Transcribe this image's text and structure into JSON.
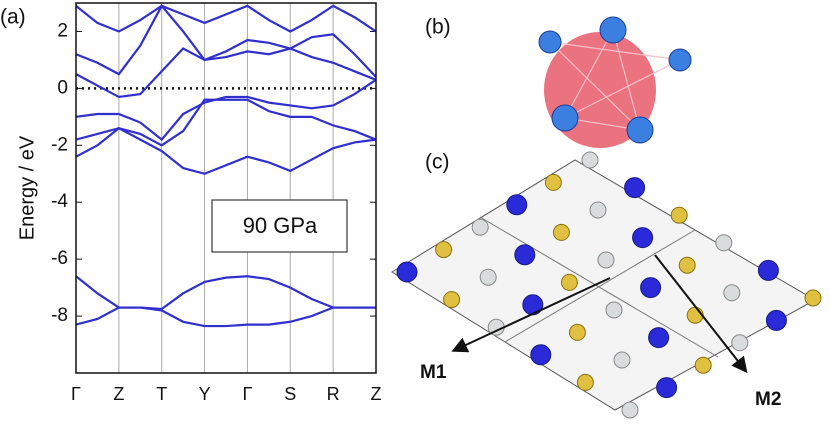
{
  "chart_data": {
    "type": "line",
    "panel_labels": [
      "(a)",
      "(b)",
      "(c)"
    ],
    "ylabel": "Energy / eV",
    "annotation": "90 GPa",
    "arrow_labels": [
      "M1",
      "M2"
    ],
    "x": [
      0,
      0.5,
      1,
      1.5,
      2,
      2.5,
      3,
      3.5,
      4,
      4.5,
      5,
      5.5,
      6,
      6.5,
      7
    ],
    "xlim": [
      0,
      7
    ],
    "xticks": [
      {
        "value": 0,
        "label": "Γ"
      },
      {
        "value": 1,
        "label": "Z"
      },
      {
        "value": 2,
        "label": "T"
      },
      {
        "value": 3,
        "label": "Y"
      },
      {
        "value": 4,
        "label": "Γ"
      },
      {
        "value": 5,
        "label": "S"
      },
      {
        "value": 6,
        "label": "R"
      },
      {
        "value": 7,
        "label": "Z"
      }
    ],
    "ylim": [
      -10,
      3
    ],
    "yticks": [
      -8,
      -6,
      -4,
      -2,
      0,
      2
    ],
    "fermi_level": 0,
    "grid": true,
    "color": "#2f2fd0",
    "series": [
      {
        "values": [
          -6.6,
          -7.2,
          -7.7,
          -7.7,
          -7.75,
          -7.2,
          -6.8,
          -6.65,
          -6.6,
          -6.7,
          -7.0,
          -7.4,
          -7.7,
          -7.7,
          -7.7
        ]
      },
      {
        "values": [
          -8.3,
          -8.1,
          -7.7,
          -7.7,
          -7.8,
          -8.2,
          -8.35,
          -8.35,
          -8.3,
          -8.3,
          -8.2,
          -8.0,
          -7.7,
          -7.7,
          -7.7
        ]
      },
      {
        "values": [
          -2.4,
          -2.0,
          -1.4,
          -1.8,
          -2.2,
          -2.8,
          -3.0,
          -2.7,
          -2.4,
          -2.6,
          -2.9,
          -2.5,
          -2.1,
          -1.9,
          -1.8
        ]
      },
      {
        "values": [
          -1.8,
          -1.6,
          -1.4,
          -1.6,
          -2.0,
          -1.5,
          -0.4,
          -0.4,
          -0.4,
          -0.8,
          -1.0,
          -1.0,
          -1.3,
          -1.5,
          -1.8
        ]
      },
      {
        "values": [
          -1.0,
          -0.9,
          -0.9,
          -1.2,
          -1.8,
          -0.9,
          -0.5,
          -0.3,
          -0.3,
          -0.5,
          -0.6,
          -0.7,
          -0.6,
          -0.2,
          0.3
        ]
      },
      {
        "values": [
          0.5,
          0.1,
          -0.3,
          -0.2,
          0.6,
          1.4,
          1.0,
          1.1,
          1.3,
          1.2,
          1.4,
          1.1,
          0.9,
          0.6,
          0.3
        ]
      },
      {
        "values": [
          1.2,
          0.9,
          0.5,
          1.5,
          2.9,
          2.0,
          1.0,
          1.3,
          1.7,
          1.6,
          1.4,
          1.8,
          1.9,
          1.2,
          0.4
        ]
      },
      {
        "values": [
          2.9,
          2.3,
          2.0,
          2.4,
          2.9,
          2.6,
          2.3,
          2.6,
          2.9,
          2.4,
          2.0,
          2.4,
          2.9,
          2.5,
          2.0
        ]
      }
    ]
  }
}
